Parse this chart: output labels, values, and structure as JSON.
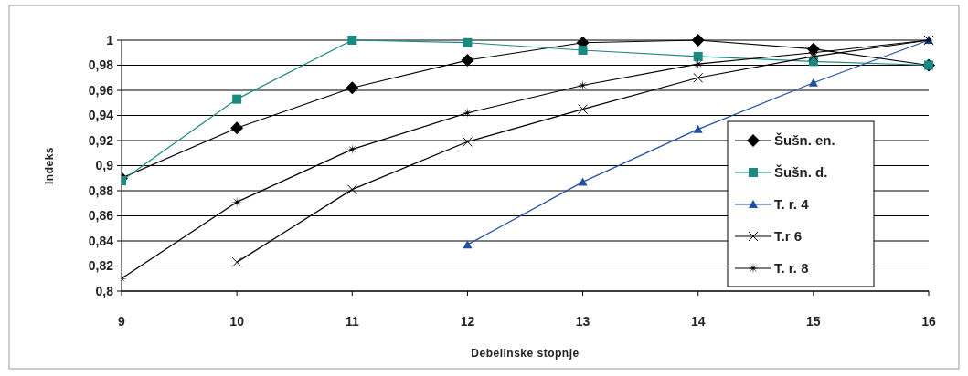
{
  "chart_data": {
    "type": "line",
    "xlabel": "Debelinske stopnje",
    "ylabel": "Indeks",
    "x": [
      9,
      10,
      11,
      12,
      13,
      14,
      15,
      16
    ],
    "xlim": [
      9,
      16
    ],
    "xticks": [
      9,
      10,
      11,
      12,
      13,
      14,
      15,
      16
    ],
    "ylim": [
      0.8,
      1
    ],
    "yticks": [
      {
        "value": 0.8,
        "label": "0,8"
      },
      {
        "value": 0.82,
        "label": "0,82"
      },
      {
        "value": 0.84,
        "label": "0,84"
      },
      {
        "value": 0.86,
        "label": "0,86"
      },
      {
        "value": 0.88,
        "label": "0,88"
      },
      {
        "value": 0.9,
        "label": "0,9"
      },
      {
        "value": 0.92,
        "label": "0,92"
      },
      {
        "value": 0.94,
        "label": "0,94"
      },
      {
        "value": 0.96,
        "label": "0,96"
      },
      {
        "value": 0.98,
        "label": "0,98"
      },
      {
        "value": 1,
        "label": "1"
      }
    ],
    "grid": "y",
    "legend": "right",
    "series": [
      {
        "name": "Šušn. en.",
        "color": "#000000",
        "marker": "diamond",
        "values": [
          0.89,
          0.93,
          0.962,
          0.984,
          0.998,
          1.0,
          0.993,
          0.98
        ]
      },
      {
        "name": "Šušn. d.",
        "color": "#1a8a80",
        "marker": "square",
        "values": [
          0.888,
          0.953,
          1.0,
          0.998,
          0.992,
          0.987,
          0.983,
          0.98
        ]
      },
      {
        "name": "T. r. 4",
        "color": "#1f4fa0",
        "marker": "triangle",
        "values": [
          null,
          null,
          null,
          0.837,
          0.887,
          0.929,
          0.966,
          1.0
        ]
      },
      {
        "name": "T.r 6",
        "color": "#000000",
        "marker": "cross",
        "values": [
          null,
          0.823,
          0.881,
          0.919,
          0.945,
          0.97,
          0.987,
          1.0
        ]
      },
      {
        "name": "T. r. 8",
        "color": "#000000",
        "marker": "star",
        "values": [
          0.81,
          0.871,
          0.913,
          0.942,
          0.964,
          0.981,
          0.99,
          1.0
        ]
      }
    ]
  }
}
